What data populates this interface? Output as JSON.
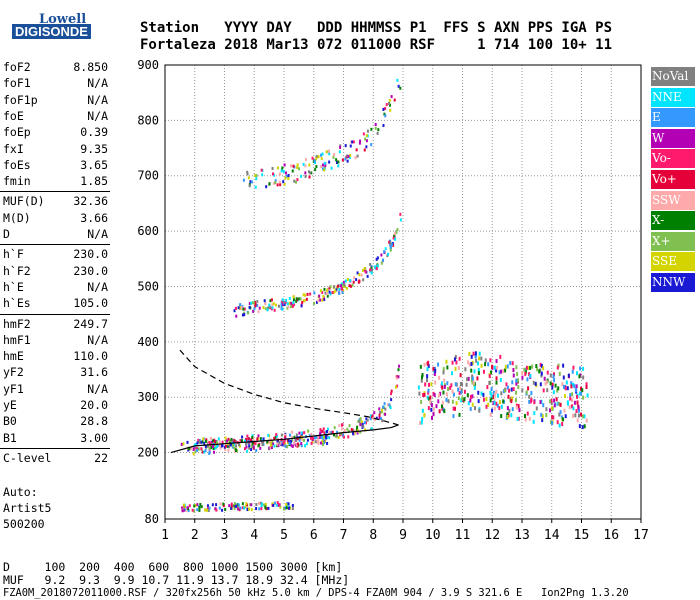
{
  "logo": {
    "line1": "Lowell",
    "line2": "DIGISONDE"
  },
  "header": {
    "line1": "Station   YYYY DAY   DDD HHMMSS P1  FFS S AXN PPS IGA PS",
    "line2": "Fortaleza 2018 Mar13 072 011000 RSF     1 714 100 10+ 11"
  },
  "params": [
    {
      "name": "foF2",
      "value": "8.850"
    },
    {
      "name": "foF1",
      "value": "N/A"
    },
    {
      "name": "foF1p",
      "value": "N/A"
    },
    {
      "name": "foE",
      "value": "N/A"
    },
    {
      "name": "foEp",
      "value": "0.39"
    },
    {
      "name": "fxI",
      "value": "9.35"
    },
    {
      "name": "foEs",
      "value": "3.65"
    },
    {
      "name": "fmin",
      "value": "1.85"
    },
    {
      "name": "MUF(D)",
      "value": "32.36"
    },
    {
      "name": "M(D)",
      "value": "3.66"
    },
    {
      "name": "D",
      "value": "N/A"
    },
    {
      "name": "h`F",
      "value": "230.0"
    },
    {
      "name": "h`F2",
      "value": "230.0"
    },
    {
      "name": "h`E",
      "value": "N/A"
    },
    {
      "name": "h`Es",
      "value": "105.0"
    },
    {
      "name": "hmF2",
      "value": "249.7"
    },
    {
      "name": "hmF1",
      "value": "N/A"
    },
    {
      "name": "hmE",
      "value": "110.0"
    },
    {
      "name": "yF2",
      "value": "31.6"
    },
    {
      "name": "yF1",
      "value": "N/A"
    },
    {
      "name": "yE",
      "value": "20.0"
    },
    {
      "name": "B0",
      "value": "28.8"
    },
    {
      "name": "B1",
      "value": "3.00"
    },
    {
      "name": "C-level",
      "value": "22"
    }
  ],
  "auto": {
    "line1": "Auto:",
    "line2": "Artist5",
    "line3": "500200"
  },
  "footer": {
    "line1": "D     100  200  400  600  800 1000 1500 3000 [km]",
    "line2": "MUF   9.2  9.3  9.9 10.7 11.9 13.7 18.9 32.4 [MHz]",
    "line3": "FZA0M_2018072011000.RSF / 320fx256h 50 kHz 5.0 km / DPS-4 FZA0M 904 / 3.9 S 321.6 E   Ion2Png 1.3.20"
  },
  "legend": [
    {
      "label": "NoVal",
      "color": "#808080"
    },
    {
      "label": "NNE",
      "color": "#00e5ff"
    },
    {
      "label": "E",
      "color": "#3399ff"
    },
    {
      "label": "W",
      "color": "#b400b4"
    },
    {
      "label": "Vo-",
      "color": "#ff1a6e"
    },
    {
      "label": "Vo+",
      "color": "#e6003a"
    },
    {
      "label": "SSW",
      "color": "#ffaaaa"
    },
    {
      "label": "X-",
      "color": "#008000"
    },
    {
      "label": "X+",
      "color": "#80c050"
    },
    {
      "label": "SSE",
      "color": "#d4d400"
    },
    {
      "label": "NNW",
      "color": "#1a1ad4"
    }
  ],
  "chart_data": {
    "type": "scatter",
    "xlim": [
      1,
      17
    ],
    "ylim": [
      80,
      900
    ],
    "x_ticks": [
      "1",
      "2",
      "3",
      "4",
      "5",
      "6",
      "7",
      "8",
      "9",
      "10",
      "11",
      "12",
      "13",
      "14",
      "15",
      "16",
      "17"
    ],
    "y_ticks": [
      "80",
      "200",
      "300",
      "400",
      "500",
      "600",
      "700",
      "800",
      "900"
    ],
    "grid": true,
    "traces": [
      {
        "name": "o-trace",
        "points": [
          [
            1.9,
            213
          ],
          [
            3,
            216
          ],
          [
            4,
            220
          ],
          [
            5,
            225
          ],
          [
            6,
            230
          ],
          [
            7,
            240
          ],
          [
            7.8,
            255
          ],
          [
            8.3,
            275
          ],
          [
            8.7,
            310
          ],
          [
            8.85,
            360
          ]
        ]
      },
      {
        "name": "o-trace-2hop",
        "points": [
          [
            3.3,
            458
          ],
          [
            4,
            465
          ],
          [
            5,
            472
          ],
          [
            6,
            482
          ],
          [
            7,
            503
          ],
          [
            7.8,
            530
          ],
          [
            8.3,
            555
          ],
          [
            8.7,
            590
          ],
          [
            8.9,
            630
          ]
        ]
      },
      {
        "name": "o-trace-3hop",
        "points": [
          [
            3.6,
            690
          ],
          [
            4.5,
            700
          ],
          [
            5.5,
            710
          ],
          [
            6.5,
            730
          ],
          [
            7.3,
            750
          ],
          [
            8,
            780
          ],
          [
            8.5,
            830
          ],
          [
            8.9,
            880
          ]
        ]
      },
      {
        "name": "es-trace",
        "points": [
          [
            1.5,
            212
          ],
          [
            2.5,
            217
          ],
          [
            3.5,
            220
          ],
          [
            4.5,
            222
          ],
          [
            5.5,
            223
          ],
          [
            6.5,
            225
          ]
        ]
      },
      {
        "name": "es-low",
        "points": [
          [
            1.5,
            102
          ],
          [
            2.5,
            104
          ],
          [
            3.5,
            105
          ],
          [
            4.5,
            106
          ],
          [
            5.3,
            107
          ]
        ]
      },
      {
        "name": "spread-f",
        "points": [
          [
            9.5,
            310
          ],
          [
            10.5,
            320
          ],
          [
            11.5,
            330
          ],
          [
            12.5,
            320
          ],
          [
            13.5,
            310
          ],
          [
            14.5,
            305
          ],
          [
            15.2,
            300
          ]
        ]
      }
    ],
    "profile_solid": [
      [
        1.2,
        200
      ],
      [
        2,
        212
      ],
      [
        3,
        216
      ],
      [
        4,
        220
      ],
      [
        5,
        224
      ],
      [
        6,
        230
      ],
      [
        7,
        236
      ],
      [
        8,
        241
      ],
      [
        8.6,
        245
      ],
      [
        8.85,
        250
      ]
    ],
    "profile_dashed": [
      [
        1.5,
        385
      ],
      [
        2,
        355
      ],
      [
        3,
        325
      ],
      [
        4,
        305
      ],
      [
        5,
        290
      ],
      [
        6,
        280
      ],
      [
        7,
        272
      ],
      [
        7.8,
        265
      ],
      [
        8.3,
        258
      ],
      [
        8.85,
        250
      ]
    ]
  }
}
